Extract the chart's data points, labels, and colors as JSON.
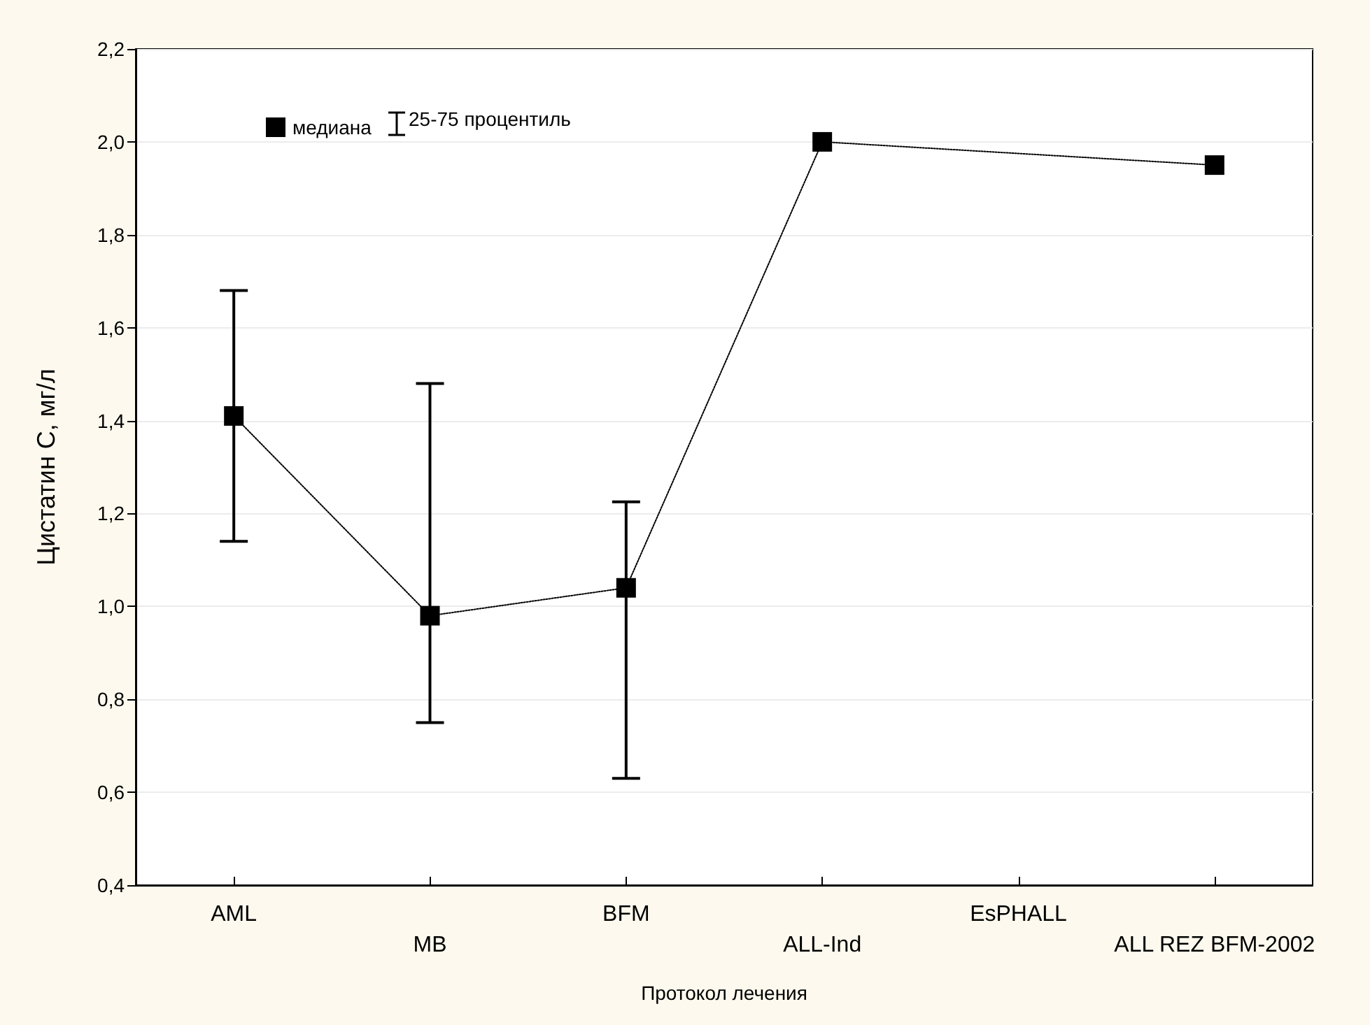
{
  "chart_data": {
    "type": "line",
    "xlabel": "Протокол лечения",
    "ylabel": "Цистатин С, мг/л",
    "categories": [
      "AML",
      "MB",
      "BFM",
      "ALL-Ind",
      "EsPHALL",
      "ALL REZ BFM-2002"
    ],
    "series": [
      {
        "name": "медиана",
        "color": "#000000",
        "values": [
          1.41,
          0.98,
          1.04,
          2.0,
          null,
          1.95
        ],
        "errors": [
          [
            1.14,
            1.68
          ],
          [
            0.75,
            1.48
          ],
          [
            0.63,
            1.225
          ],
          null,
          null,
          null
        ]
      }
    ],
    "ylim": [
      0.4,
      2.2
    ],
    "yticks": [
      {
        "value": 0.4,
        "label": "0,4"
      },
      {
        "value": 0.6,
        "label": "0,6"
      },
      {
        "value": 0.8,
        "label": "0,8"
      },
      {
        "value": 1.0,
        "label": "1,0"
      },
      {
        "value": 1.2,
        "label": "1,2"
      },
      {
        "value": 1.4,
        "label": "1,4"
      },
      {
        "value": 1.6,
        "label": "1,6"
      },
      {
        "value": 1.8,
        "label": "1,8"
      },
      {
        "value": 2.0,
        "label": "2,0"
      },
      {
        "value": 2.2,
        "label": "2,2"
      }
    ],
    "annotations": [
      "25-75 процентиль"
    ],
    "grid": "y",
    "legend": "top left",
    "marker": "square",
    "line_style": "dotted"
  }
}
